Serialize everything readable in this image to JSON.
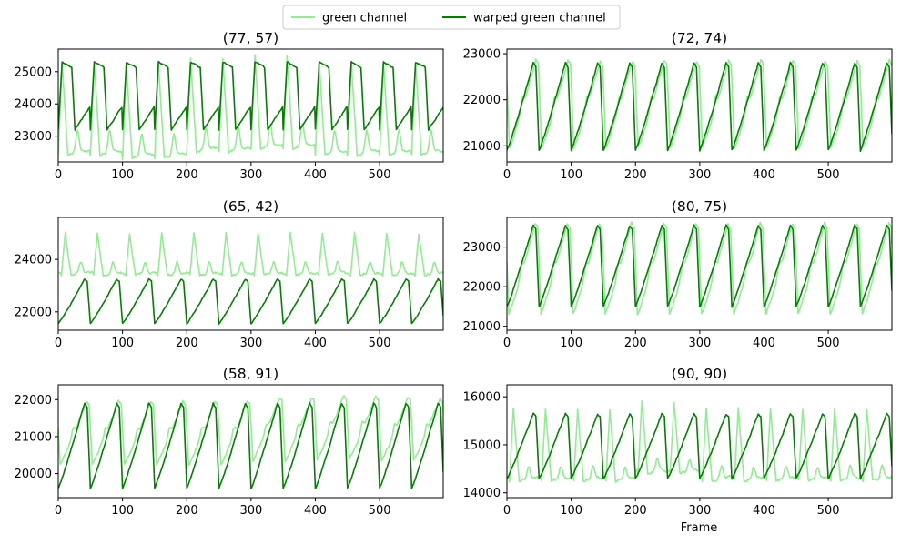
{
  "chart_data": {
    "type": "line",
    "legend": {
      "placement": "top-center",
      "entries": [
        {
          "name": "green channel",
          "color": "#90ee90"
        },
        {
          "name": "warped green channel",
          "color": "#008000"
        }
      ]
    },
    "xlabel": "Frame",
    "panels": [
      {
        "title": "(77, 57)",
        "xlim": [
          0,
          599
        ],
        "ylim": [
          22200,
          25700
        ],
        "xticks": [
          0,
          100,
          200,
          300,
          400,
          500
        ],
        "yticks": [
          23000,
          24000,
          25000
        ],
        "series": [
          {
            "name": "green channel",
            "color": "#90ee90",
            "period": 50,
            "phase": 50,
            "min": 22400,
            "max": 25300,
            "shape": "sharp",
            "drift": [
              0,
              -100,
              100,
              200,
              0,
              0
            ],
            "noise": 60,
            "secondary": 0.5
          },
          {
            "name": "warped green channel",
            "color": "#008000",
            "period": 50,
            "phase": 0,
            "min": 23200,
            "max": 25300,
            "shape": "plateau",
            "drift": [
              0,
              0,
              0,
              0,
              0,
              0
            ],
            "noise": 35,
            "secondary": 0
          }
        ]
      },
      {
        "title": "(72, 74)",
        "xlim": [
          0,
          599
        ],
        "ylim": [
          20650,
          23100
        ],
        "xticks": [
          0,
          100,
          200,
          300,
          400,
          500
        ],
        "yticks": [
          21000,
          22000,
          23000
        ],
        "series": [
          {
            "name": "green channel",
            "color": "#90ee90",
            "period": 50,
            "phase": 4,
            "min": 20950,
            "max": 22850,
            "shape": "sawtooth",
            "drift": [
              0,
              0,
              0,
              0,
              0,
              0
            ],
            "noise": 60,
            "secondary": 0.35
          },
          {
            "name": "warped green channel",
            "color": "#008000",
            "period": 50,
            "phase": 0,
            "min": 20900,
            "max": 22800,
            "shape": "sawtooth",
            "drift": [
              0,
              0,
              0,
              0,
              0,
              0
            ],
            "noise": 35,
            "secondary": 0
          }
        ]
      },
      {
        "title": "(65, 42)",
        "xlim": [
          0,
          599
        ],
        "ylim": [
          21300,
          25600
        ],
        "xticks": [
          0,
          100,
          200,
          300,
          400,
          500
        ],
        "yticks": [
          22000,
          24000
        ],
        "series": [
          {
            "name": "green channel",
            "color": "#90ee90",
            "period": 50,
            "phase": 5,
            "min": 23400,
            "max": 25000,
            "shape": "sharp",
            "drift": [
              0,
              0,
              0,
              0,
              0,
              0
            ],
            "noise": 90,
            "secondary": 0.6
          },
          {
            "name": "warped green channel",
            "color": "#008000",
            "period": 50,
            "phase": 0,
            "min": 21550,
            "max": 23250,
            "shape": "sawtooth",
            "drift": [
              0,
              0,
              0,
              0,
              0,
              0
            ],
            "noise": 35,
            "secondary": 0
          }
        ]
      },
      {
        "title": "(80, 75)",
        "xlim": [
          0,
          599
        ],
        "ylim": [
          20900,
          23750
        ],
        "xticks": [
          0,
          100,
          200,
          300,
          400,
          500
        ],
        "yticks": [
          21000,
          22000,
          23000
        ],
        "series": [
          {
            "name": "green channel",
            "color": "#90ee90",
            "period": 50,
            "phase": 3,
            "min": 21300,
            "max": 23600,
            "shape": "sawtooth",
            "drift": [
              0,
              0,
              0,
              0,
              0,
              0
            ],
            "noise": 70,
            "secondary": 0.3
          },
          {
            "name": "warped green channel",
            "color": "#008000",
            "period": 50,
            "phase": 0,
            "min": 21500,
            "max": 23550,
            "shape": "sawtooth",
            "drift": [
              0,
              0,
              0,
              0,
              0,
              0
            ],
            "noise": 35,
            "secondary": 0
          }
        ]
      },
      {
        "title": "(58, 91)",
        "xlim": [
          0,
          599
        ],
        "ylim": [
          19350,
          22400
        ],
        "xticks": [
          0,
          100,
          200,
          300,
          400,
          500
        ],
        "yticks": [
          20000,
          21000,
          22000
        ],
        "series": [
          {
            "name": "green channel",
            "color": "#90ee90",
            "period": 50,
            "phase": 3,
            "min": 20250,
            "max": 21950,
            "shape": "sawtooth",
            "drift": [
              0,
              0,
              0,
              100,
              150,
              100
            ],
            "noise": 60,
            "secondary": 0.35
          },
          {
            "name": "warped green channel",
            "color": "#008000",
            "period": 50,
            "phase": 0,
            "min": 19600,
            "max": 21900,
            "shape": "sawtooth",
            "drift": [
              0,
              0,
              0,
              0,
              0,
              0
            ],
            "noise": 35,
            "secondary": 0
          }
        ]
      },
      {
        "title": "(90, 90)",
        "xlim": [
          0,
          599
        ],
        "ylim": [
          13900,
          16250
        ],
        "xticks": [
          0,
          100,
          200,
          300,
          400,
          500
        ],
        "yticks": [
          14000,
          15000,
          16000
        ],
        "series": [
          {
            "name": "green channel",
            "color": "#90ee90",
            "period": 50,
            "phase": 4,
            "min": 14250,
            "max": 15750,
            "shape": "sharp",
            "drift": [
              0,
              0,
              150,
              0,
              0,
              0
            ],
            "noise": 60,
            "secondary": 0.35
          },
          {
            "name": "warped green channel",
            "color": "#008000",
            "period": 50,
            "phase": 0,
            "min": 14300,
            "max": 15650,
            "shape": "sawtooth",
            "drift": [
              0,
              0,
              0,
              0,
              0,
              0
            ],
            "noise": 30,
            "secondary": 0
          }
        ]
      }
    ]
  }
}
